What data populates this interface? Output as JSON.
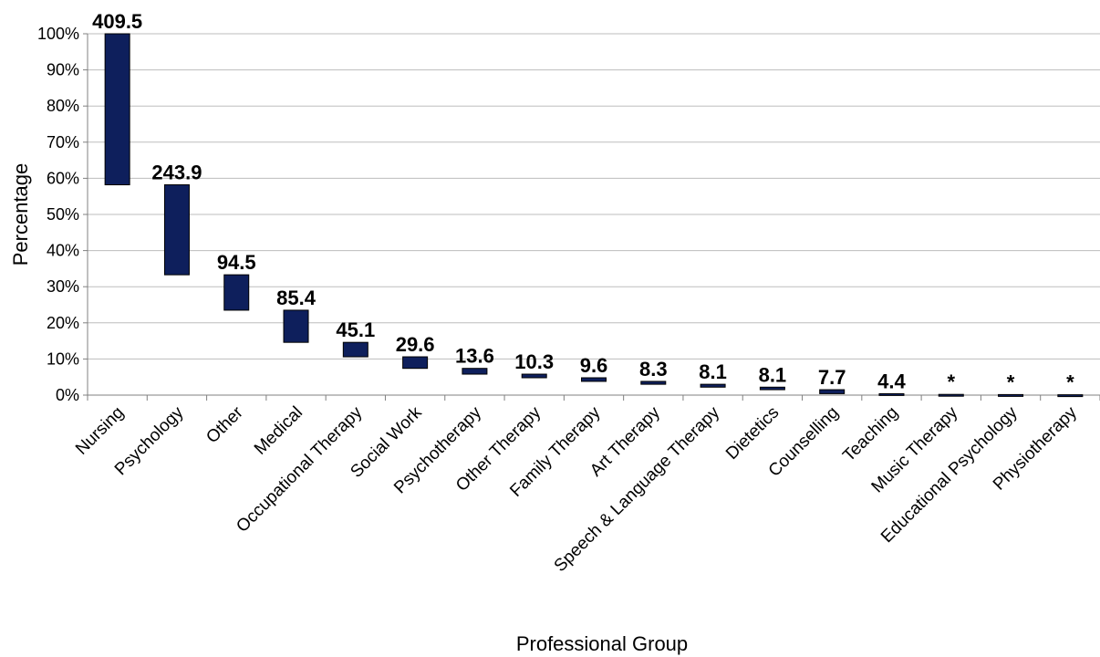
{
  "chart_data": {
    "type": "bar",
    "subtype": "waterfall",
    "xlabel": "Professional Group",
    "ylabel": "Percentage",
    "ylim": [
      0,
      100
    ],
    "yticks": [
      "0%",
      "10%",
      "20%",
      "30%",
      "40%",
      "50%",
      "60%",
      "70%",
      "80%",
      "90%",
      "100%"
    ],
    "grid": true,
    "bar_color": "#0e1f5c",
    "categories": [
      "Nursing",
      "Psychology",
      "Other",
      "Medical",
      "Occupational Therapy",
      "Social Work",
      "Psychotherapy",
      "Other Therapy",
      "Family Therapy",
      "Art Therapy",
      "Speech & Language Therapy",
      "Dietetics",
      "Counselling",
      "Teaching",
      "Music Therapy",
      "Educational Psychology",
      "Physiotherapy"
    ],
    "labels": [
      "409.5",
      "243.9",
      "94.5",
      "85.4",
      "45.1",
      "29.6",
      "13.6",
      "10.3",
      "9.6",
      "8.3",
      "8.1",
      "8.1",
      "7.7",
      "4.4",
      "*",
      "*",
      "*"
    ],
    "top": [
      100,
      58.2,
      33.3,
      23.5,
      14.6,
      10.6,
      7.4,
      5.8,
      4.8,
      3.8,
      3.0,
      2.2,
      1.5,
      0.4,
      0.2,
      0.15,
      0.1
    ],
    "bottom": [
      58.2,
      33.3,
      23.5,
      14.6,
      10.6,
      7.4,
      5.8,
      4.8,
      3.8,
      3.0,
      2.2,
      1.5,
      0.4,
      0.0,
      0.0,
      0.0,
      0.0
    ]
  }
}
